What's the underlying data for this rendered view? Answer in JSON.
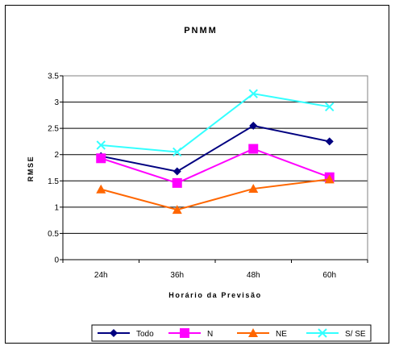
{
  "chart_data": {
    "type": "line",
    "title": "PNMM",
    "xlabel": "Horário da Previsão",
    "ylabel": "RMSE",
    "categories": [
      "24h",
      "36h",
      "48h",
      "60h"
    ],
    "ylim": [
      0,
      3.5
    ],
    "yticks": [
      "0",
      "0.5",
      "1",
      "1.5",
      "2",
      "2.5",
      "3",
      "3.5"
    ],
    "grid": true,
    "legend_position": "bottom",
    "series": [
      {
        "name": "Todo",
        "values": [
          1.97,
          1.68,
          2.55,
          2.25
        ],
        "color": "#000080",
        "marker": "diamond"
      },
      {
        "name": "N",
        "values": [
          1.93,
          1.46,
          2.11,
          1.57
        ],
        "color": "#FF00FF",
        "marker": "square"
      },
      {
        "name": "NE",
        "values": [
          1.34,
          0.95,
          1.35,
          1.53
        ],
        "color": "#FF6600",
        "marker": "triangle"
      },
      {
        "name": "S/ SE",
        "values": [
          2.18,
          2.05,
          3.16,
          2.91
        ],
        "color": "#33FFFF",
        "marker": "x"
      }
    ]
  }
}
